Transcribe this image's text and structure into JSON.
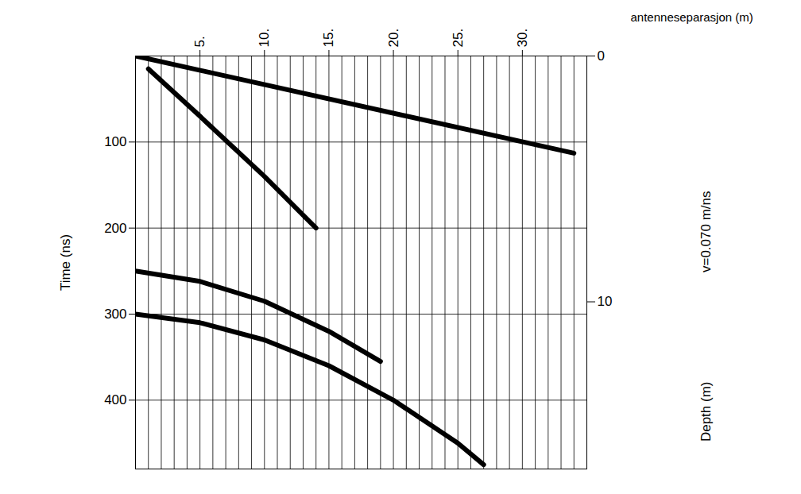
{
  "chart_data": {
    "type": "line",
    "x_label": "antenneseparasjon (m)",
    "y_label": "Time (ns)",
    "y2_label": "Depth (m)",
    "annotation": "v=0.070 m/ns",
    "xlim": [
      0,
      35
    ],
    "xticks": [
      {
        "value": 5,
        "label": "5."
      },
      {
        "value": 10,
        "label": "10."
      },
      {
        "value": 15,
        "label": "15."
      },
      {
        "value": 20,
        "label": "20."
      },
      {
        "value": 25,
        "label": "25."
      },
      {
        "value": 30,
        "label": "30."
      }
    ],
    "ylim": [
      0,
      480
    ],
    "yticks": [
      100,
      200,
      300,
      400
    ],
    "y2lim": [
      0,
      16.8
    ],
    "y2ticks": [
      0,
      10
    ],
    "grid": true,
    "trace_offsets": [
      1,
      2,
      3,
      4,
      5,
      6,
      7,
      8,
      9,
      10,
      11,
      12,
      13,
      14,
      15,
      16,
      17,
      18,
      19,
      20,
      21,
      22,
      23,
      24,
      25,
      26,
      27,
      28,
      29,
      30,
      31,
      32,
      33,
      34
    ],
    "series": [
      {
        "color": "#000000",
        "line_style": "solid",
        "x": [
          0,
          34
        ],
        "values": [
          0,
          113
        ]
      },
      {
        "color": "#000000",
        "line_style": "solid",
        "x": [
          1,
          5,
          10,
          14
        ],
        "values": [
          15,
          70,
          140,
          200
        ]
      },
      {
        "color": "#000000",
        "line_style": "solid",
        "x": [
          0,
          5,
          10,
          15,
          19
        ],
        "values": [
          250,
          262,
          285,
          320,
          355
        ]
      },
      {
        "color": "#000000",
        "line_style": "solid",
        "x": [
          0,
          5,
          10,
          15,
          20,
          25,
          27
        ],
        "values": [
          300,
          310,
          330,
          360,
          400,
          450,
          475
        ]
      }
    ]
  }
}
